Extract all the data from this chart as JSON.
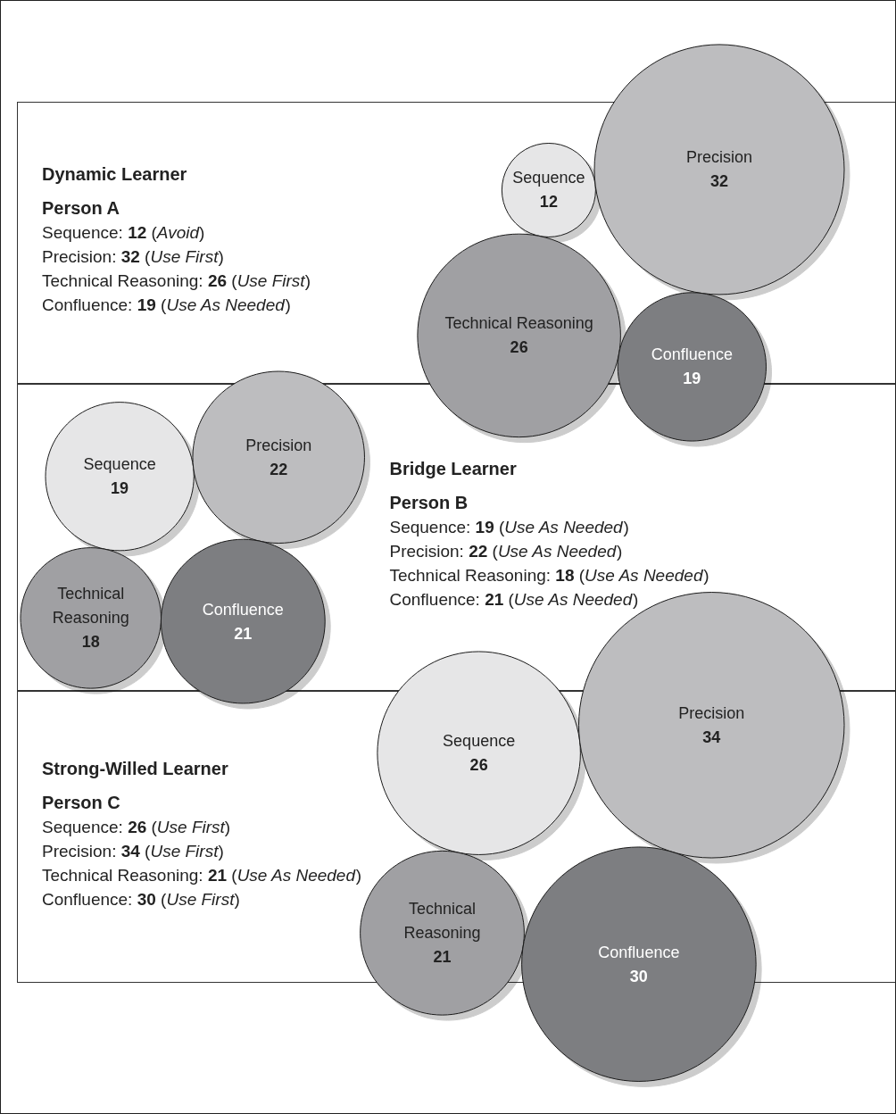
{
  "chart_data": [
    {
      "type": "other",
      "title": "Dynamic Learner",
      "subtitle": "Person A",
      "categories": [
        "Sequence",
        "Precision",
        "Technical Reasoning",
        "Confluence"
      ],
      "values": [
        12,
        32,
        26,
        19
      ],
      "colors": [
        "#e6e6e7",
        "#bdbdbf",
        "#a0a0a3",
        "#7d7e81"
      ],
      "data_labels": true,
      "annotations": [
        "Sequence: 12 (Avoid)",
        "Precision: 32 (Use First)",
        "Technical Reasoning: 26 (Use First)",
        "Confluence: 19 (Use As Needed)"
      ]
    },
    {
      "type": "other",
      "title": "Bridge Learner",
      "subtitle": "Person B",
      "categories": [
        "Sequence",
        "Precision",
        "Technical Reasoning",
        "Confluence"
      ],
      "values": [
        19,
        22,
        18,
        21
      ],
      "colors": [
        "#e6e6e7",
        "#bdbdbf",
        "#a0a0a3",
        "#7d7e81"
      ],
      "data_labels": true,
      "annotations": [
        "Sequence: 19 (Use As Needed)",
        "Precision: 22 (Use As Needed)",
        "Technical Reasoning: 18 (Use As Needed)",
        "Confluence: 21 (Use As Needed)"
      ]
    },
    {
      "type": "other",
      "title": "Strong-Willed Learner",
      "subtitle": "Person C",
      "categories": [
        "Sequence",
        "Precision",
        "Technical Reasoning",
        "Confluence"
      ],
      "values": [
        26,
        34,
        21,
        30
      ],
      "colors": [
        "#e6e6e7",
        "#bdbdbf",
        "#a0a0a3",
        "#7d7e81"
      ],
      "data_labels": true,
      "annotations": [
        "Sequence: 26 (Use First)",
        "Precision: 34 (Use First)",
        "Technical Reasoning: 21 (Use As Needed)",
        "Confluence: 30 (Use First)"
      ]
    }
  ]
}
